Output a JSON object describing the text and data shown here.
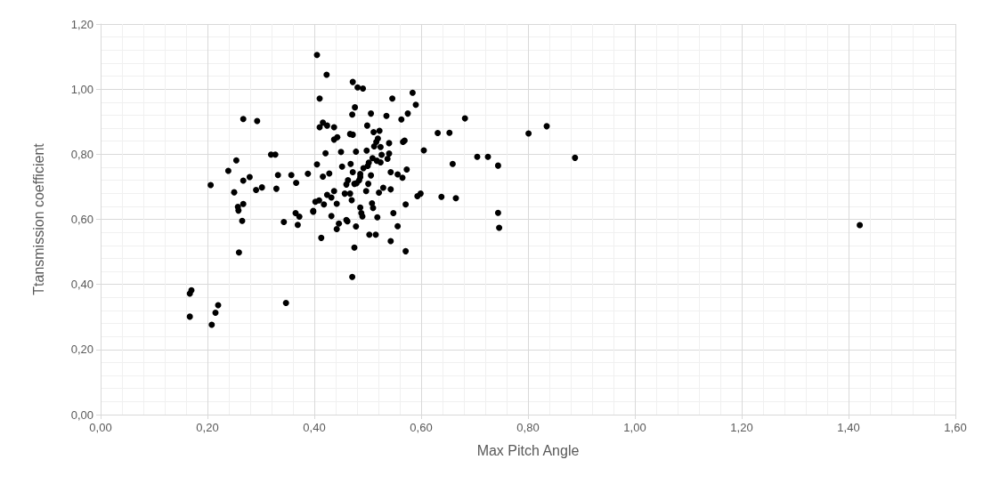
{
  "chart_data": {
    "type": "scatter",
    "xlabel": "Max Pitch Angle",
    "ylabel": "Ttansmission coefficient",
    "color": "#000000",
    "marker": "circle",
    "grid": true,
    "xlim": [
      0,
      1.6
    ],
    "ylim": [
      0,
      1.2
    ],
    "xticks": [
      {
        "value": 0,
        "label": "0,00"
      },
      {
        "value": 0.2,
        "label": "0,20"
      },
      {
        "value": 0.4,
        "label": "0,40"
      },
      {
        "value": 0.6,
        "label": "0,60"
      },
      {
        "value": 0.8,
        "label": "0,80"
      },
      {
        "value": 1.0,
        "label": "1,00"
      },
      {
        "value": 1.2,
        "label": "1,20"
      },
      {
        "value": 1.4,
        "label": "1,40"
      },
      {
        "value": 1.6,
        "label": "1,60"
      }
    ],
    "yticks": [
      {
        "value": 0,
        "label": "0,00"
      },
      {
        "value": 0.2,
        "label": "0,20"
      },
      {
        "value": 0.4,
        "label": "0,40"
      },
      {
        "value": 0.6,
        "label": "0,60"
      },
      {
        "value": 0.8,
        "label": "0,80"
      },
      {
        "value": 1.0,
        "label": "1,00"
      },
      {
        "value": 1.2,
        "label": "1,20"
      }
    ],
    "x": [
      0.405,
      0.423,
      0.41,
      0.267,
      0.293,
      0.416,
      0.41,
      0.424,
      0.437,
      0.437,
      0.421,
      0.319,
      0.327,
      0.254,
      0.405,
      0.239,
      0.428,
      0.416,
      0.279,
      0.332,
      0.357,
      0.388,
      0.267,
      0.366,
      0.206,
      0.302,
      0.291,
      0.329,
      0.25,
      0.437,
      0.424,
      0.432,
      0.409,
      0.402,
      0.418,
      0.442,
      0.267,
      0.257,
      0.258,
      0.398,
      0.398,
      0.365,
      0.372,
      0.432,
      0.265,
      0.343,
      0.369,
      0.442,
      0.413,
      0.259,
      0.17,
      0.167,
      0.347,
      0.22,
      0.215,
      0.167,
      0.208,
      0.472,
      0.481,
      0.491,
      0.584,
      0.546,
      0.59,
      0.476,
      0.471,
      0.506,
      0.535,
      0.575,
      0.563,
      0.682,
      0.499,
      0.511,
      0.522,
      0.467,
      0.472,
      0.631,
      0.653,
      0.801,
      0.835,
      0.443,
      0.519,
      0.516,
      0.569,
      0.566,
      0.54,
      0.512,
      0.524,
      0.605,
      0.45,
      0.478,
      0.498,
      0.54,
      0.537,
      0.526,
      0.509,
      0.517,
      0.524,
      0.502,
      0.5,
      0.492,
      0.468,
      0.452,
      0.705,
      0.725,
      0.659,
      0.744,
      0.472,
      0.486,
      0.486,
      0.506,
      0.543,
      0.556,
      0.565,
      0.573,
      0.484,
      0.501,
      0.463,
      0.46,
      0.475,
      0.479,
      0.529,
      0.543,
      0.521,
      0.497,
      0.457,
      0.467,
      0.47,
      0.593,
      0.599,
      0.638,
      0.665,
      0.571,
      0.508,
      0.51,
      0.486,
      0.488,
      0.49,
      0.548,
      0.46,
      0.462,
      0.446,
      0.518,
      0.478,
      0.556,
      0.744,
      0.746,
      0.503,
      0.515,
      0.543,
      0.475,
      0.571,
      0.471,
      1.421,
      0.888
    ],
    "values": [
      1.105,
      1.044,
      0.971,
      0.908,
      0.902,
      0.897,
      0.883,
      0.888,
      0.883,
      0.845,
      0.803,
      0.799,
      0.799,
      0.781,
      0.769,
      0.749,
      0.741,
      0.731,
      0.73,
      0.736,
      0.736,
      0.74,
      0.719,
      0.712,
      0.705,
      0.698,
      0.69,
      0.694,
      0.683,
      0.687,
      0.675,
      0.667,
      0.658,
      0.654,
      0.646,
      0.648,
      0.647,
      0.638,
      0.627,
      0.626,
      0.623,
      0.619,
      0.608,
      0.61,
      0.595,
      0.592,
      0.583,
      0.57,
      0.543,
      0.498,
      0.382,
      0.372,
      0.343,
      0.336,
      0.313,
      0.301,
      0.276,
      1.022,
      1.005,
      1.002,
      0.989,
      0.971,
      0.952,
      0.944,
      0.922,
      0.925,
      0.918,
      0.925,
      0.907,
      0.91,
      0.888,
      0.868,
      0.872,
      0.862,
      0.86,
      0.865,
      0.866,
      0.864,
      0.886,
      0.852,
      0.848,
      0.838,
      0.842,
      0.838,
      0.834,
      0.824,
      0.822,
      0.812,
      0.807,
      0.808,
      0.811,
      0.802,
      0.786,
      0.798,
      0.788,
      0.78,
      0.775,
      0.774,
      0.764,
      0.757,
      0.77,
      0.762,
      0.792,
      0.792,
      0.77,
      0.765,
      0.745,
      0.739,
      0.73,
      0.735,
      0.745,
      0.738,
      0.728,
      0.753,
      0.72,
      0.709,
      0.72,
      0.707,
      0.709,
      0.711,
      0.697,
      0.692,
      0.682,
      0.687,
      0.679,
      0.679,
      0.659,
      0.671,
      0.679,
      0.669,
      0.665,
      0.646,
      0.649,
      0.635,
      0.636,
      0.619,
      0.609,
      0.619,
      0.598,
      0.594,
      0.587,
      0.606,
      0.578,
      0.579,
      0.62,
      0.574,
      0.553,
      0.553,
      0.533,
      0.513,
      0.502,
      0.423,
      0.582,
      0.789
    ]
  }
}
